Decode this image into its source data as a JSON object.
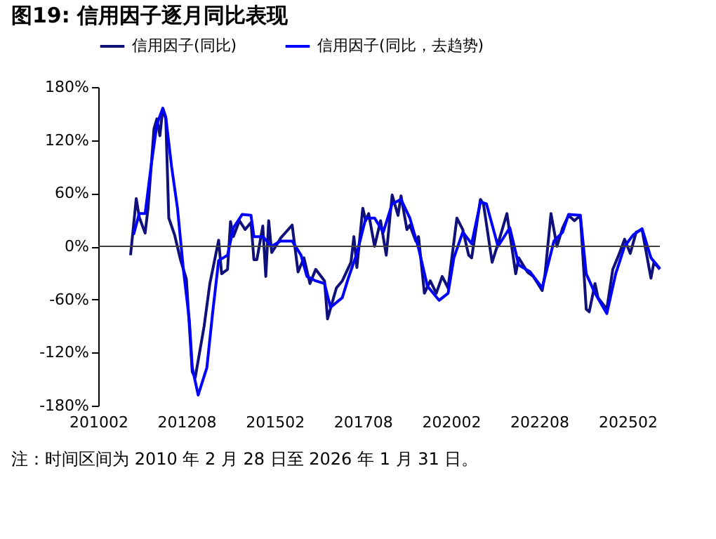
{
  "chart_data": {
    "type": "line",
    "title": "图19:  信用因子逐月同比表现",
    "annotations": [
      "注：时间区间为 2010 年 2 月 28 日至 2026 年 1 月 31 日。"
    ],
    "xlim": [
      "2010-02",
      "2026-01"
    ],
    "xticks": [
      {
        "value": "2010-02",
        "label": "201002"
      },
      {
        "value": "2012-08",
        "label": "201208"
      },
      {
        "value": "2015-02",
        "label": "201502"
      },
      {
        "value": "2017-08",
        "label": "201708"
      },
      {
        "value": "2020-02",
        "label": "202002"
      },
      {
        "value": "2022-08",
        "label": "202208"
      },
      {
        "value": "2025-02",
        "label": "202502"
      }
    ],
    "ylim": [
      -180,
      180
    ],
    "yticks": [
      {
        "value": -180,
        "label": "-180%"
      },
      {
        "value": -120,
        "label": "-120%"
      },
      {
        "value": -60,
        "label": "-60%"
      },
      {
        "value": 0,
        "label": "0%"
      },
      {
        "value": 60,
        "label": "60%"
      },
      {
        "value": 120,
        "label": "120%"
      },
      {
        "value": 180,
        "label": "180%"
      }
    ],
    "ref_lines": [
      {
        "axis": "y",
        "value": 0,
        "color": "#404040"
      }
    ],
    "grid": false,
    "legend": "top",
    "marker": "none",
    "line_style": "solid",
    "series": [
      {
        "name": "信用因子(同比)",
        "color": "#10107a",
        "x": [
          "2011-01",
          "2011-03",
          "2011-04",
          "2011-06",
          "2011-07",
          "2011-09",
          "2011-10",
          "2011-11",
          "2011-12",
          "2012-01",
          "2012-02",
          "2012-04",
          "2012-06",
          "2012-08",
          "2012-10",
          "2012-11",
          "2013-02",
          "2013-04",
          "2013-05",
          "2013-07",
          "2013-08",
          "2013-10",
          "2013-11",
          "2013-12",
          "2014-02",
          "2014-04",
          "2014-06",
          "2014-07",
          "2014-08",
          "2014-10",
          "2014-11",
          "2014-12",
          "2015-01",
          "2015-03",
          "2015-04",
          "2015-08",
          "2015-10",
          "2015-12",
          "2016-02",
          "2016-04",
          "2016-07",
          "2016-08",
          "2016-11",
          "2017-01",
          "2017-04",
          "2017-05",
          "2017-06",
          "2017-08",
          "2017-09",
          "2017-10",
          "2017-12",
          "2018-02",
          "2018-04",
          "2018-06",
          "2018-08",
          "2018-09",
          "2018-11",
          "2018-12",
          "2019-02",
          "2019-03",
          "2019-05",
          "2019-07",
          "2019-09",
          "2019-11",
          "2020-01",
          "2020-04",
          "2020-06",
          "2020-08",
          "2020-09",
          "2020-12",
          "2021-01",
          "2021-04",
          "2021-06",
          "2021-09",
          "2021-12",
          "2022-01",
          "2022-04",
          "2022-06",
          "2022-09",
          "2022-10",
          "2022-12",
          "2023-02",
          "2023-04",
          "2023-06",
          "2023-08",
          "2023-10",
          "2023-12",
          "2024-01",
          "2024-03",
          "2024-04",
          "2024-07",
          "2024-09",
          "2024-11",
          "2025-01",
          "2025-03",
          "2025-05",
          "2025-07",
          "2025-10",
          "2025-11",
          "2026-01"
        ],
        "values": [
          -10,
          54,
          33,
          15,
          43,
          133,
          144,
          125,
          156,
          144,
          32,
          13,
          -15,
          -37,
          -142,
          -148,
          -90,
          -42,
          -26,
          7,
          -31,
          -26,
          28,
          11,
          29,
          19,
          27,
          -15,
          -15,
          23,
          -34,
          29,
          -7,
          3,
          9,
          24,
          -29,
          -13,
          -42,
          -26,
          -39,
          -82,
          -47,
          -39,
          -18,
          11,
          -24,
          43,
          29,
          37,
          0,
          29,
          -10,
          58,
          35,
          57,
          19,
          24,
          6,
          11,
          -53,
          -39,
          -53,
          -34,
          -47,
          32,
          19,
          -10,
          -13,
          53,
          48,
          -18,
          3,
          37,
          -31,
          -13,
          -29,
          -34,
          -50,
          -31,
          37,
          0,
          21,
          35,
          29,
          35,
          -71,
          -74,
          -42,
          -58,
          -71,
          -26,
          -10,
          8,
          -8,
          16,
          19,
          -36,
          -18,
          -26
        ]
      },
      {
        "name": "信用因子(同比，去趋势)",
        "color": "#0000ff",
        "x": [
          "2011-02",
          "2011-04",
          "2011-06",
          "2011-08",
          "2011-10",
          "2011-12",
          "2012-01",
          "2012-03",
          "2012-05",
          "2012-07",
          "2012-09",
          "2012-10",
          "2012-12",
          "2013-03",
          "2013-05",
          "2013-07",
          "2013-10",
          "2013-12",
          "2014-03",
          "2014-06",
          "2014-07",
          "2014-10",
          "2015-01",
          "2015-04",
          "2015-08",
          "2015-11",
          "2016-01",
          "2016-04",
          "2016-07",
          "2016-09",
          "2017-01",
          "2017-03",
          "2017-06",
          "2017-09",
          "2017-12",
          "2018-03",
          "2018-06",
          "2018-09",
          "2018-12",
          "2019-03",
          "2019-06",
          "2019-10",
          "2020-01",
          "2020-03",
          "2020-06",
          "2020-09",
          "2020-12",
          "2021-02",
          "2021-06",
          "2021-10",
          "2022-01",
          "2022-05",
          "2022-09",
          "2023-01",
          "2023-04",
          "2023-06",
          "2023-10",
          "2023-12",
          "2024-03",
          "2024-07",
          "2024-10",
          "2025-01",
          "2025-04",
          "2025-07",
          "2025-10",
          "2026-01"
        ],
        "values": [
          13,
          37,
          37,
          90,
          138,
          156,
          146,
          90,
          43,
          -26,
          -84,
          -137,
          -168,
          -137,
          -74,
          -16,
          -10,
          21,
          36,
          35,
          11,
          11,
          0,
          6,
          6,
          -10,
          -34,
          -39,
          -42,
          -69,
          -58,
          -37,
          -8,
          32,
          32,
          16,
          48,
          53,
          32,
          -2,
          -45,
          -61,
          -53,
          -13,
          16,
          3,
          50,
          48,
          0,
          21,
          -21,
          -29,
          -47,
          6,
          16,
          36,
          35,
          -31,
          -53,
          -76,
          -31,
          0,
          13,
          20,
          -13,
          -25
        ]
      }
    ]
  }
}
